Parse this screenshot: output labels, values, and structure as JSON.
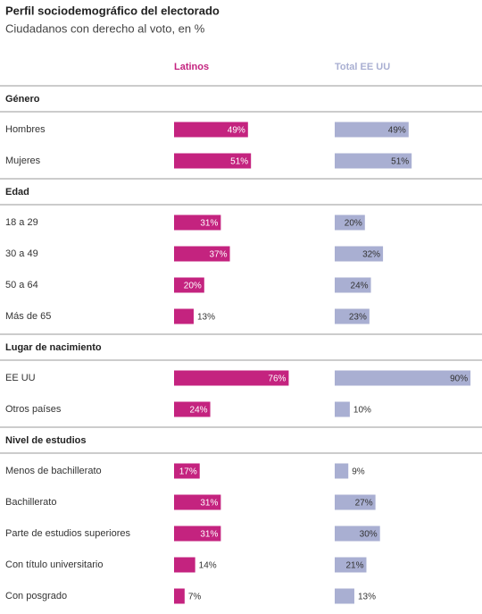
{
  "chart_data": {
    "type": "bar",
    "title": "Perfil sociodemográfico del electorado",
    "subtitle": "Ciudadanos con derecho al voto, en %",
    "series": [
      {
        "name": "Latinos",
        "color": "#c4237f"
      },
      {
        "name": "Total EE UU",
        "color": "#a9afd2"
      }
    ],
    "groups": [
      {
        "title": "Género",
        "categories": [
          "Hombres",
          "Mujeres"
        ],
        "series": [
          {
            "values": [
              49,
              51
            ],
            "value_labels": [
              "49%",
              "51%"
            ]
          },
          {
            "values": [
              49,
              51
            ],
            "value_labels": [
              "49%",
              "51%"
            ]
          }
        ]
      },
      {
        "title": "Edad",
        "categories": [
          "18 a 29",
          "30 a 49",
          "50 a 64",
          "Más de 65"
        ],
        "series": [
          {
            "values": [
              31,
              37,
              20,
              13
            ],
            "value_labels": [
              "31%",
              "37%",
              "20%",
              "13%"
            ]
          },
          {
            "values": [
              20,
              32,
              24,
              23
            ],
            "value_labels": [
              "20%",
              "32%",
              "24%",
              "23%"
            ]
          }
        ]
      },
      {
        "title": "Lugar de nacimiento",
        "categories": [
          "EE UU",
          "Otros países"
        ],
        "series": [
          {
            "values": [
              76,
              24
            ],
            "value_labels": [
              "76%",
              "24%"
            ]
          },
          {
            "values": [
              90,
              10
            ],
            "value_labels": [
              "90%",
              "10%"
            ]
          }
        ]
      },
      {
        "title": "Nivel de estudios",
        "categories": [
          "Menos de bachillerato",
          "Bachillerato",
          "Parte de estudios superiores",
          "Con título universitario",
          "Con posgrado"
        ],
        "series": [
          {
            "values": [
              17,
              31,
              31,
              14,
              7
            ],
            "value_labels": [
              "17%",
              "31%",
              "31%",
              "14%",
              "7%"
            ]
          },
          {
            "values": [
              9,
              27,
              30,
              21,
              13
            ],
            "value_labels": [
              "9%",
              "27%",
              "30%",
              "21%",
              "13%"
            ]
          }
        ]
      }
    ]
  }
}
